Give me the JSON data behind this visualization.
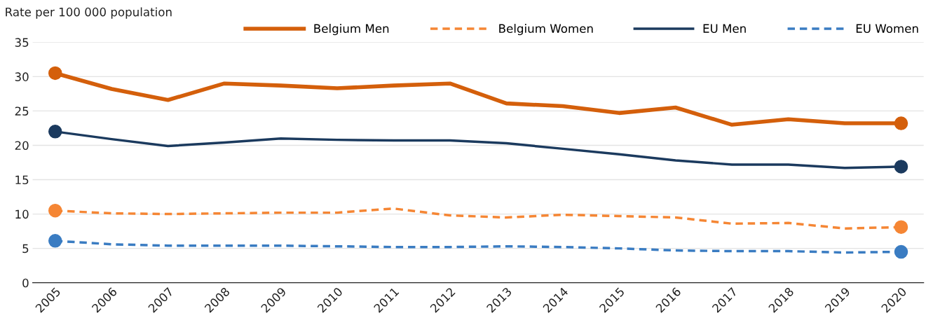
{
  "chart_data": {
    "type": "line",
    "ylabel": "Rate per 100 000 population",
    "categories": [
      "2005",
      "2006",
      "2007",
      "2008",
      "2009",
      "2010",
      "2011",
      "2012",
      "2013",
      "2014",
      "2015",
      "2016",
      "2017",
      "2018",
      "2019",
      "2020"
    ],
    "series": [
      {
        "name": "Belgium Men",
        "color": "#d45f0b",
        "line_style": "solid",
        "values": [
          30.5,
          28.2,
          26.6,
          29.0,
          28.7,
          28.3,
          28.7,
          29.0,
          26.1,
          25.7,
          24.7,
          25.5,
          23.0,
          23.8,
          23.2,
          23.2
        ]
      },
      {
        "name": "Belgium Women",
        "color": "#f58634",
        "line_style": "dashed",
        "values": [
          10.5,
          10.1,
          10.0,
          10.1,
          10.2,
          10.2,
          10.8,
          9.8,
          9.5,
          9.9,
          9.7,
          9.5,
          8.6,
          8.7,
          7.9,
          8.1
        ]
      },
      {
        "name": "EU Men",
        "color": "#1b3a5e",
        "line_style": "solid",
        "values": [
          22.0,
          20.9,
          19.9,
          20.4,
          21.0,
          20.8,
          20.7,
          20.7,
          20.3,
          19.5,
          18.7,
          17.8,
          17.2,
          17.2,
          16.7,
          16.9
        ]
      },
      {
        "name": "EU Women",
        "color": "#3a7cc2",
        "line_style": "dashed",
        "values": [
          6.1,
          5.6,
          5.4,
          5.4,
          5.4,
          5.3,
          5.2,
          5.2,
          5.3,
          5.2,
          5.0,
          4.7,
          4.6,
          4.6,
          4.4,
          4.5
        ]
      },
      {
        "type": "scatter",
        "color": "#d45f0b",
        "marker": "circle",
        "values": [
          30.5,
          null,
          null,
          null,
          null,
          null,
          null,
          null,
          null,
          null,
          null,
          null,
          null,
          null,
          null,
          23.2
        ]
      },
      {
        "type": "scatter",
        "color": "#f58634",
        "marker": "circle",
        "values": [
          10.5,
          null,
          null,
          null,
          null,
          null,
          null,
          null,
          null,
          null,
          null,
          null,
          null,
          null,
          null,
          8.1
        ]
      },
      {
        "type": "scatter",
        "color": "#1b3a5e",
        "marker": "circle",
        "values": [
          22.0,
          null,
          null,
          null,
          null,
          null,
          null,
          null,
          null,
          null,
          null,
          null,
          null,
          null,
          null,
          16.9
        ]
      },
      {
        "type": "scatter",
        "color": "#3a7cc2",
        "marker": "circle",
        "values": [
          6.1,
          null,
          null,
          null,
          null,
          null,
          null,
          null,
          null,
          null,
          null,
          null,
          null,
          null,
          null,
          4.5
        ]
      }
    ],
    "ylim": [
      0,
      35
    ],
    "yticks": [
      0,
      5,
      10,
      15,
      20,
      25,
      30,
      35
    ],
    "grid": "y",
    "legend": "top right"
  }
}
